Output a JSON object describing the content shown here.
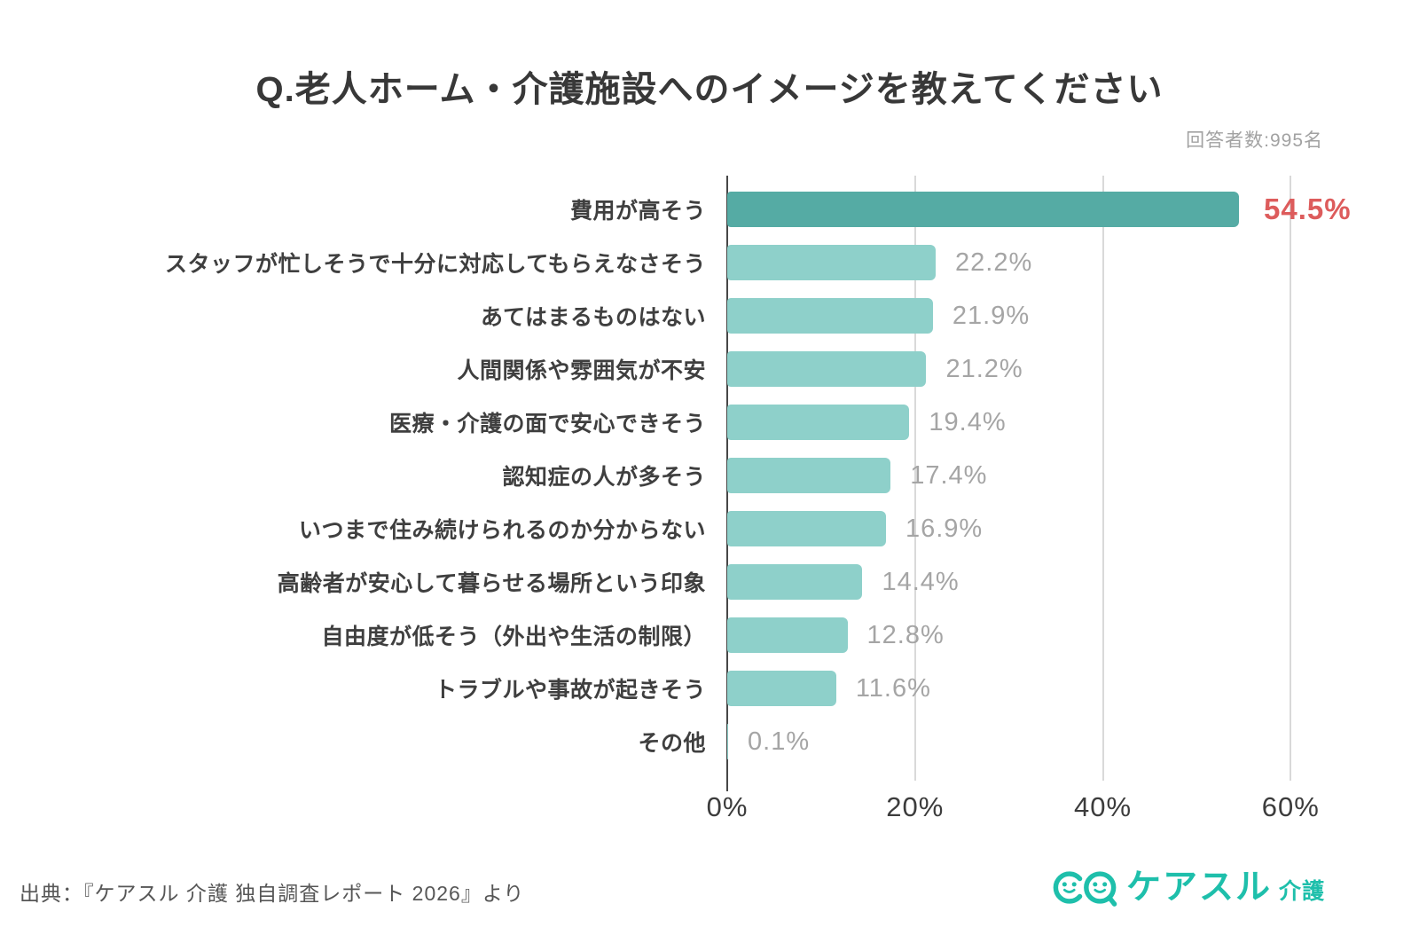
{
  "page": {
    "title": "Q.老人ホーム・介護施設へのイメージを教えてください",
    "respondents_note": "回答者数:995名"
  },
  "chart_data": {
    "type": "bar",
    "orientation": "horizontal",
    "title": "Q.老人ホーム・介護施設へのイメージを教えてください",
    "categories": [
      "費用が高そう",
      "スタッフが忙しそうで十分に対応してもらえなさそう",
      "あてはまるものはない",
      "人間関係や雰囲気が不安",
      "医療・介護の面で安心できそう",
      "認知症の人が多そう",
      "いつまで住み続けられるのか分からない",
      "高齢者が安心して暮らせる場所という印象",
      "自由度が低そう（外出や生活の制限）",
      "トラブルや事故が起きそう",
      "その他"
    ],
    "values": [
      54.5,
      22.2,
      21.9,
      21.2,
      19.4,
      17.4,
      16.9,
      14.4,
      12.8,
      11.6,
      0.1
    ],
    "value_labels": [
      "54.5%",
      "22.2%",
      "21.9%",
      "21.2%",
      "19.4%",
      "17.4%",
      "16.9%",
      "14.4%",
      "12.8%",
      "11.6%",
      "0.1%"
    ],
    "highlight_index": 0,
    "xlabel": "",
    "ylabel": "",
    "xlim": [
      0,
      60
    ],
    "x_render_max": 68,
    "x_ticks": [
      {
        "value": 0,
        "label": "0%"
      },
      {
        "value": 20,
        "label": "20%"
      },
      {
        "value": 40,
        "label": "40%"
      },
      {
        "value": 60,
        "label": "60%"
      }
    ],
    "grid": "vertical-gridlines",
    "legend": "none",
    "colors": {
      "bar_default": "#8ed0ca",
      "bar_highlight": "#55aba4",
      "value_default": "#a5a5a5",
      "value_highlight": "#dd5c5c",
      "gridline": "#d9d9d9",
      "axis": "#474747"
    }
  },
  "footer": {
    "source_text": "出典：『ケアスル 介護 独自調査レポート 2026』より",
    "logo_brand": "ケアスル",
    "logo_suffix": "介護",
    "logo_color": "#1ebfab"
  }
}
